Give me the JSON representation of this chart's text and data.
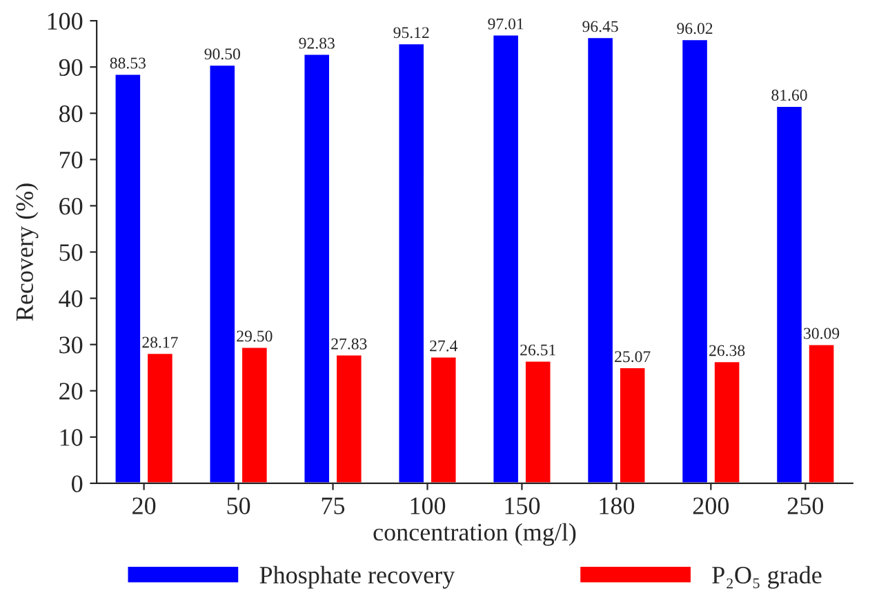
{
  "chart_data": {
    "type": "bar",
    "xlabel": "concentration (mg/l)",
    "ylabel": "Recovery (%)",
    "categories": [
      "20",
      "50",
      "75",
      "100",
      "150",
      "180",
      "200",
      "250"
    ],
    "series": [
      {
        "name": "Phosphate recovery",
        "color": "#0000ff",
        "values": [
          88.53,
          90.5,
          92.83,
          95.12,
          97.01,
          96.45,
          96.02,
          81.6
        ],
        "value_labels": [
          "88.53",
          "90.50",
          "92.83",
          "95.12",
          "97.01",
          "96.45",
          "96.02",
          "81.60"
        ]
      },
      {
        "name": "P₂O₅ grade",
        "color": "#ff0000",
        "values": [
          28.17,
          29.5,
          27.83,
          27.4,
          26.51,
          25.07,
          26.38,
          30.09
        ],
        "value_labels": [
          "28.17",
          "29.50",
          "27.83",
          "27.4",
          "26.51",
          "25.07",
          "26.38",
          "30.09"
        ]
      }
    ],
    "ylim": [
      0,
      100
    ],
    "yticks": [
      0,
      10,
      20,
      30,
      40,
      50,
      60,
      70,
      80,
      90,
      100
    ],
    "grid": false,
    "legend": "bottom"
  }
}
